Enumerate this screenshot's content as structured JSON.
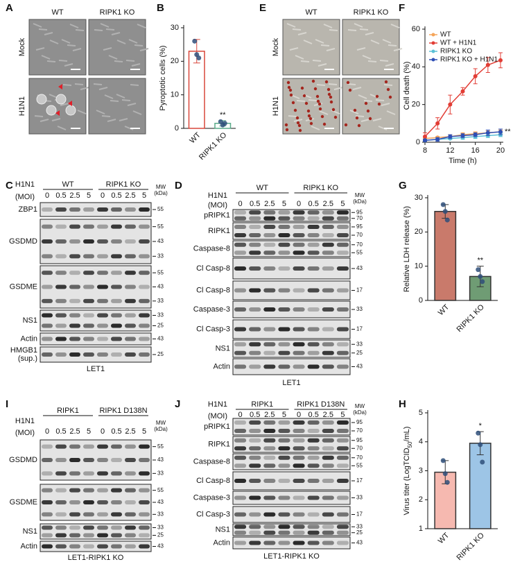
{
  "figure": {
    "A": {
      "panel": "A",
      "columns": [
        "WT",
        "RIPK1 KO"
      ],
      "rows": [
        "Mock",
        "H1N1"
      ]
    },
    "E": {
      "panel": "E",
      "columns": [
        "WT",
        "RIPK1 KO"
      ],
      "rows": [
        "Mock",
        "H1N1"
      ]
    },
    "C": {
      "panel": "C",
      "treatment": "H1N1",
      "dose": "(MOI)",
      "groups": [
        "WT",
        "RIPK1 KO"
      ],
      "doses": [
        "0",
        "0.5",
        "2.5",
        "5"
      ],
      "mw_title": "MW",
      "mw_unit": "(kDa)",
      "rows": [
        {
          "label": [
            "ZBP1"
          ],
          "mw": [
            "55"
          ]
        },
        {
          "label": [
            "GSDMD"
          ],
          "mw": [
            "55",
            "43",
            "33"
          ]
        },
        {
          "label": [
            "GSDME"
          ],
          "mw": [
            "55",
            "43",
            "33"
          ]
        },
        {
          "label": [
            "NS1"
          ],
          "mw": [
            "33",
            "25"
          ]
        },
        {
          "label": [
            "Actin"
          ],
          "mw": [
            "43"
          ]
        },
        {
          "label": [
            "HMGB1",
            "(sup.)"
          ],
          "mw": [
            "25"
          ]
        }
      ],
      "cell_line": "LET1"
    },
    "D": {
      "panel": "D",
      "treatment": "H1N1",
      "dose": "(MOI)",
      "groups": [
        "WT",
        "RIPK1 KO"
      ],
      "doses": [
        "0",
        "0.5",
        "2.5",
        "5"
      ],
      "mw_title": "MW",
      "mw_unit": "(kDa)",
      "rows": [
        {
          "label": [
            "pRIPK1"
          ],
          "mw": [
            "95",
            "70"
          ]
        },
        {
          "label": [
            "RIPK1"
          ],
          "mw": [
            "95",
            "70"
          ]
        },
        {
          "label": [
            "Caspase-8"
          ],
          "mw": [
            "70",
            "55"
          ]
        },
        {
          "label": [
            "Cl Casp-8"
          ],
          "mw": [
            "43"
          ]
        },
        {
          "label": [
            "Cl Casp-8"
          ],
          "mw": [
            "17"
          ]
        },
        {
          "label": [
            "Caspase-3"
          ],
          "mw": [
            "33"
          ]
        },
        {
          "label": [
            "Cl Casp-3"
          ],
          "mw": [
            "17"
          ]
        },
        {
          "label": [
            "NS1"
          ],
          "mw": [
            "33",
            "25"
          ]
        },
        {
          "label": [
            "Actin"
          ],
          "mw": [
            "43"
          ]
        }
      ],
      "cell_line": "LET1"
    },
    "I": {
      "panel": "I",
      "treatment": "H1N1",
      "dose": "(MOI)",
      "groups": [
        "RIPK1",
        "RIPK1 D138N"
      ],
      "doses": [
        "0",
        "0.5",
        "2.5",
        "5"
      ],
      "mw_title": "MW",
      "mw_unit": "(kDa)",
      "rows": [
        {
          "label": [
            "GSDMD"
          ],
          "mw": [
            "55",
            "43",
            "33"
          ]
        },
        {
          "label": [
            "GSDME"
          ],
          "mw": [
            "55",
            "43",
            "33"
          ]
        },
        {
          "label": [
            "NS1"
          ],
          "mw": [
            "33",
            "25"
          ]
        },
        {
          "label": [
            "Actin"
          ],
          "mw": [
            "43"
          ]
        }
      ],
      "cell_line": "LET1-RIPK1 KO"
    },
    "J": {
      "panel": "J",
      "treatment": "H1N1",
      "dose": "(MOI)",
      "groups": [
        "RIPK1",
        "RIPK1 D138N"
      ],
      "doses": [
        "0",
        "0.5",
        "2.5",
        "5"
      ],
      "mw_title": "MW",
      "mw_unit": "(kDa)",
      "rows": [
        {
          "label": [
            "pRIPK1"
          ],
          "mw": [
            "95",
            "70"
          ]
        },
        {
          "label": [
            "RIPK1"
          ],
          "mw": [
            "95",
            "70"
          ]
        },
        {
          "label": [
            "Caspase-8"
          ],
          "mw": [
            "70",
            "55"
          ]
        },
        {
          "label": [
            "Cl Casp-8"
          ],
          "mw": [
            "17"
          ]
        },
        {
          "label": [
            "Caspase-3"
          ],
          "mw": [
            "33"
          ]
        },
        {
          "label": [
            "Cl Casp-3"
          ],
          "mw": [
            "17"
          ]
        },
        {
          "label": [
            "NS1"
          ],
          "mw": [
            "33",
            "25"
          ]
        },
        {
          "label": [
            "Actin"
          ],
          "mw": [
            "43"
          ]
        }
      ],
      "cell_line": "LET1-RIPK1 KO"
    }
  },
  "chart_data": [
    {
      "type": "bar",
      "panel": "B",
      "ylabel": "Pyroptotic cells (%)",
      "categories": [
        "WT",
        "RIPK1 KO"
      ],
      "values": [
        23,
        1.5
      ],
      "errors": [
        3.5,
        0.8
      ],
      "points": [
        [
          26,
          22,
          21
        ],
        [
          2,
          1,
          1.5
        ]
      ],
      "colors": [
        "#ffffff",
        "#ffffff"
      ],
      "edge_colors": [
        "#d9473a",
        "#5aab8a"
      ],
      "ylim": [
        0,
        30
      ],
      "yticks": [
        0,
        10,
        20,
        30
      ],
      "annotation": "**"
    },
    {
      "type": "line",
      "panel": "F",
      "xlabel": "Time (h)",
      "ylabel": "Cell death (%)",
      "x": [
        8,
        10,
        12,
        14,
        16,
        18,
        20
      ],
      "xlim": [
        8,
        20
      ],
      "xticks": [
        8,
        12,
        16,
        20
      ],
      "ylim": [
        0,
        60
      ],
      "yticks": [
        0,
        20,
        40,
        60
      ],
      "series": [
        {
          "name": "WT",
          "color": "#f5a55a",
          "values": [
            2,
            2.5,
            3,
            4,
            4.5,
            5,
            5.5
          ],
          "errors": [
            0.5,
            0.5,
            1,
            1,
            1,
            1,
            1
          ]
        },
        {
          "name": "WT + H1N1",
          "color": "#e23d35",
          "values": [
            3,
            10,
            20,
            27,
            35,
            41,
            43.5
          ],
          "errors": [
            2,
            3,
            5,
            2,
            4,
            4,
            4
          ]
        },
        {
          "name": "RIPK1 KO",
          "color": "#5bc0d6",
          "values": [
            1,
            1.5,
            2,
            2.5,
            3,
            3.5,
            4
          ],
          "errors": [
            0.5,
            0.5,
            0.5,
            1,
            1,
            1,
            1
          ]
        },
        {
          "name": "RIPK1 KO + H1N1",
          "color": "#2f4fb5",
          "values": [
            1,
            1.5,
            3,
            3.5,
            4,
            5,
            5.5
          ],
          "errors": [
            0.5,
            1,
            1,
            1,
            1,
            1.5,
            1.5
          ]
        }
      ],
      "annotation": "**"
    },
    {
      "type": "bar",
      "panel": "G",
      "ylabel": "Relative LDH release (%)",
      "categories": [
        "WT",
        "RIPK1 KO"
      ],
      "values": [
        26,
        7
      ],
      "errors": [
        2,
        3
      ],
      "points": [
        [
          28,
          26,
          23.5
        ],
        [
          9,
          7,
          5.5
        ]
      ],
      "colors": [
        "#c97a6b",
        "#6f9c74"
      ],
      "edge_colors": [
        "#333333",
        "#333333"
      ],
      "ylim": [
        0,
        30
      ],
      "yticks": [
        0,
        10,
        20,
        30
      ],
      "annotation": "**"
    },
    {
      "type": "bar",
      "panel": "H",
      "ylabel": "Virus titer (LogTCID",
      "ylabel_sub": "50",
      "ylabel_end": "/mL)",
      "categories": [
        "WT",
        "RIPK1 KO"
      ],
      "values": [
        2.95,
        3.95
      ],
      "errors": [
        0.4,
        0.4
      ],
      "points": [
        [
          3.35,
          2.9,
          2.6
        ],
        [
          4.3,
          3.9,
          3.3
        ]
      ],
      "colors": [
        "#f6b9b0",
        "#9dc5e6"
      ],
      "edge_colors": [
        "#333333",
        "#333333"
      ],
      "ylim": [
        1,
        5
      ],
      "yticks": [
        1,
        2,
        3,
        4,
        5
      ],
      "annotation": "*"
    }
  ]
}
